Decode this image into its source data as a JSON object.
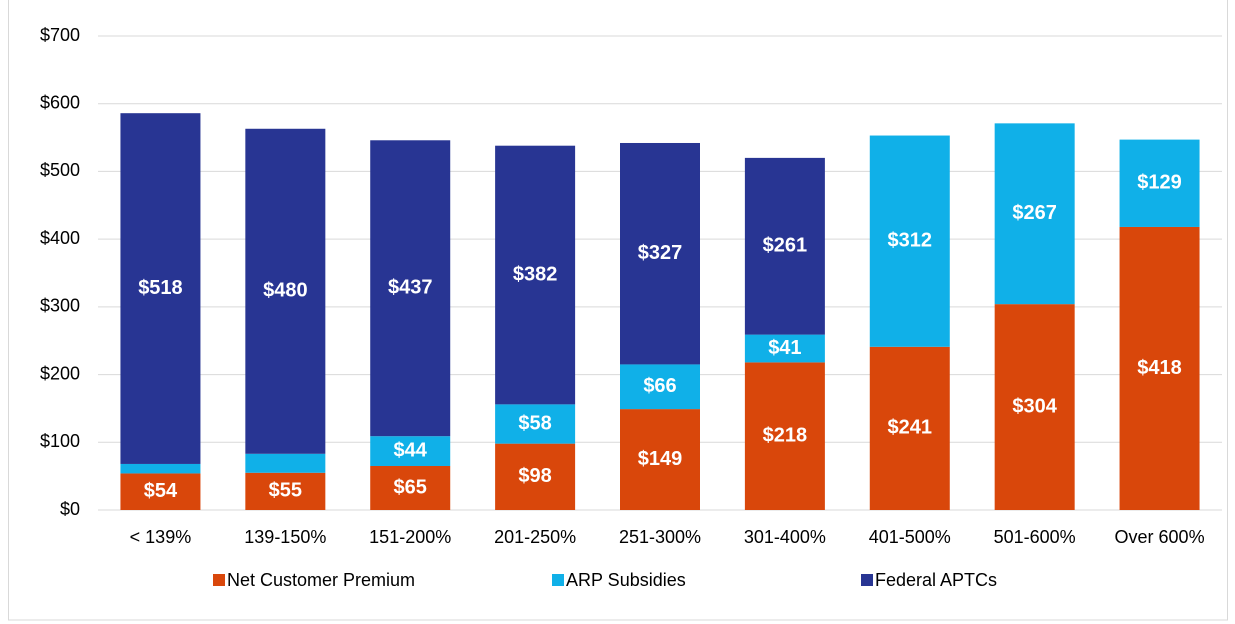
{
  "chart_data": {
    "type": "stacked_bar",
    "categories": [
      "< 139%",
      "139-150%",
      "151-200%",
      "201-250%",
      "251-300%",
      "301-400%",
      "401-500%",
      "501-600%",
      "Over 600%"
    ],
    "series": [
      {
        "name": "Net Customer Premium",
        "color": "#d9470b",
        "values": [
          54,
          55,
          65,
          98,
          149,
          218,
          241,
          304,
          418
        ],
        "value_labels": [
          "$54",
          "$55",
          "$65",
          "$98",
          "$149",
          "$218",
          "$241",
          "$304",
          "$418"
        ]
      },
      {
        "name": "ARP Subsidies",
        "color": "#10b0e8",
        "values": [
          14,
          28,
          44,
          58,
          66,
          41,
          312,
          267,
          129
        ],
        "value_labels": [
          "$14",
          "$28",
          "$44",
          "$58",
          "$66",
          "$41",
          "$312",
          "$267",
          "$129"
        ]
      },
      {
        "name": "Federal APTCs",
        "color": "#283593",
        "values": [
          518,
          480,
          437,
          382,
          327,
          261,
          null,
          null,
          null
        ],
        "value_labels": [
          "$518",
          "$480",
          "$437",
          "$382",
          "$327",
          "$261",
          null,
          null,
          null
        ]
      }
    ],
    "ylim": [
      0,
      700
    ],
    "yticks": [
      {
        "value": 0,
        "label": "$0"
      },
      {
        "value": 100,
        "label": "$100"
      },
      {
        "value": 200,
        "label": "$200"
      },
      {
        "value": 300,
        "label": "$300"
      },
      {
        "value": 400,
        "label": "$400"
      },
      {
        "value": 500,
        "label": "$500"
      },
      {
        "value": 600,
        "label": "$600"
      },
      {
        "value": 700,
        "label": "$700"
      }
    ],
    "grid": true,
    "legend": "bottom"
  }
}
